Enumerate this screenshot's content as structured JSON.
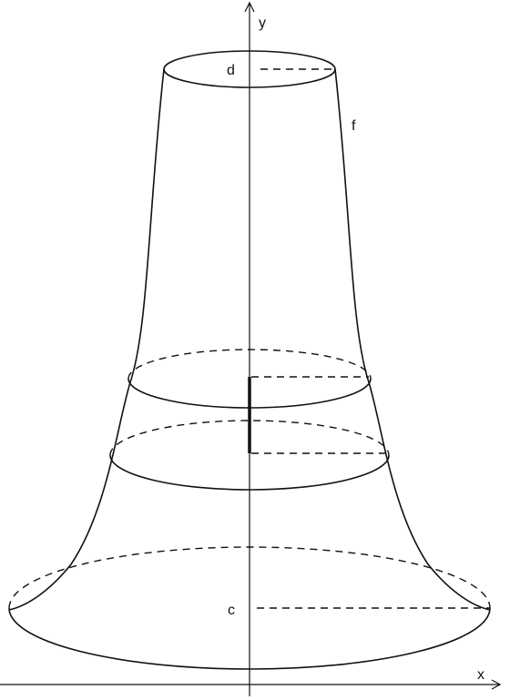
{
  "labels": {
    "y_axis": "y",
    "x_axis": "x",
    "top_level": "d",
    "curve": "f",
    "bottom_level": "c"
  }
}
